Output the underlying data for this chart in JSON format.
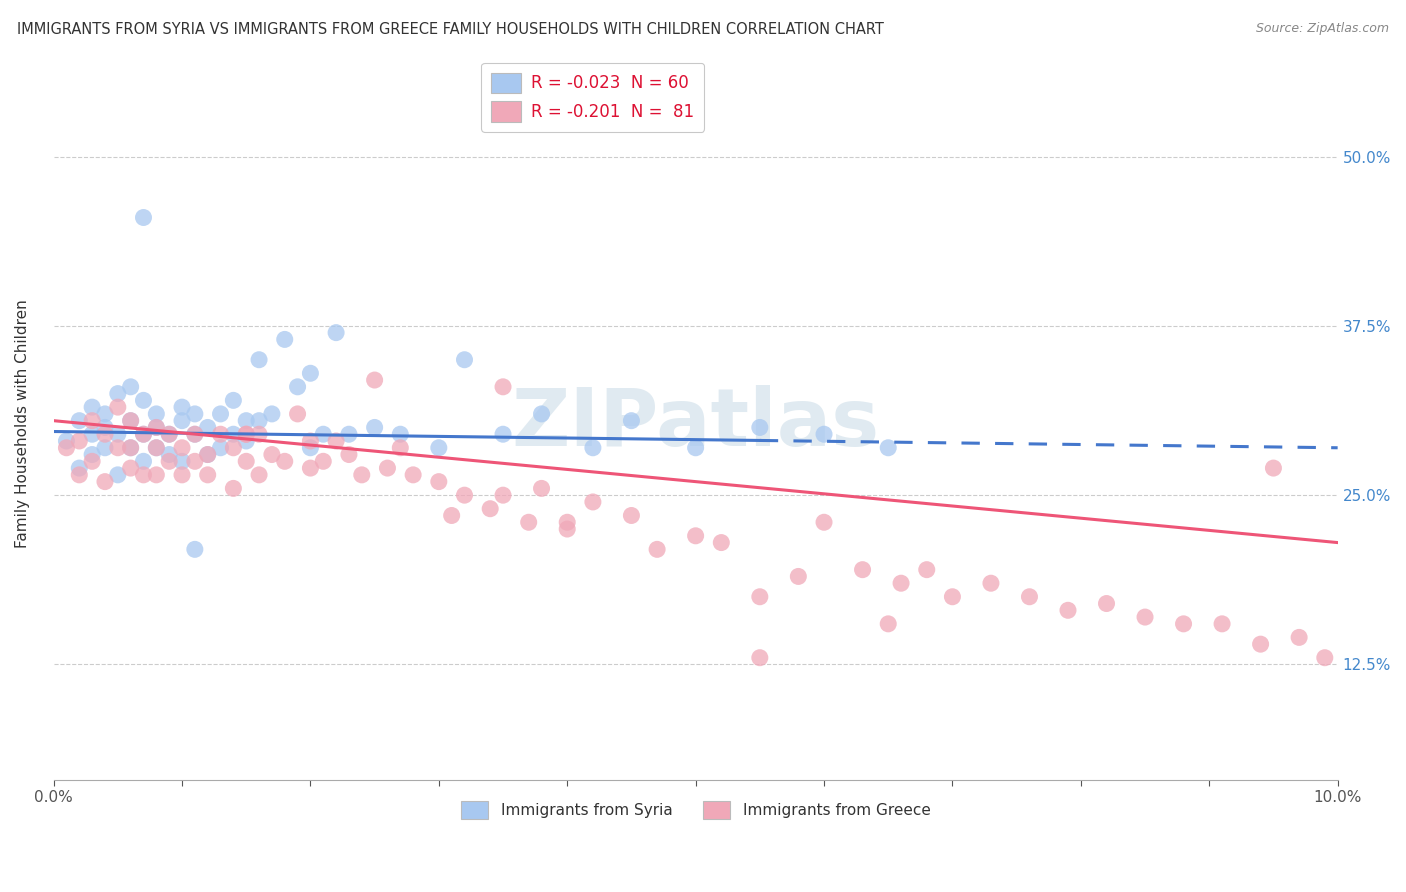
{
  "title": "IMMIGRANTS FROM SYRIA VS IMMIGRANTS FROM GREECE FAMILY HOUSEHOLDS WITH CHILDREN CORRELATION CHART",
  "source": "Source: ZipAtlas.com",
  "ylabel": "Family Households with Children",
  "yticks": [
    "12.5%",
    "25.0%",
    "37.5%",
    "50.0%"
  ],
  "ytick_values": [
    0.125,
    0.25,
    0.375,
    0.5
  ],
  "xlim": [
    0.0,
    0.1
  ],
  "ylim": [
    0.04,
    0.565
  ],
  "legend_syria": "R = -0.023  N = 60",
  "legend_greece": "R = -0.201  N =  81",
  "legend_label_syria": "Immigrants from Syria",
  "legend_label_greece": "Immigrants from Greece",
  "syria_color": "#a8c8f0",
  "greece_color": "#f0a8b8",
  "syria_line_color": "#4477cc",
  "greece_line_color": "#ee5577",
  "watermark": "ZIPatlas",
  "watermark_color": "#ccdde8",
  "syria_x": [
    0.001,
    0.002,
    0.002,
    0.003,
    0.003,
    0.003,
    0.004,
    0.004,
    0.004,
    0.005,
    0.005,
    0.005,
    0.006,
    0.006,
    0.006,
    0.007,
    0.007,
    0.007,
    0.008,
    0.008,
    0.008,
    0.009,
    0.009,
    0.01,
    0.01,
    0.01,
    0.011,
    0.011,
    0.012,
    0.012,
    0.013,
    0.013,
    0.014,
    0.014,
    0.015,
    0.015,
    0.016,
    0.017,
    0.018,
    0.019,
    0.02,
    0.021,
    0.022,
    0.023,
    0.025,
    0.027,
    0.03,
    0.032,
    0.035,
    0.038,
    0.042,
    0.045,
    0.05,
    0.055,
    0.06,
    0.065,
    0.02,
    0.016,
    0.011,
    0.007
  ],
  "syria_y": [
    0.29,
    0.305,
    0.27,
    0.315,
    0.295,
    0.28,
    0.31,
    0.285,
    0.3,
    0.295,
    0.265,
    0.325,
    0.285,
    0.305,
    0.33,
    0.295,
    0.32,
    0.275,
    0.3,
    0.285,
    0.31,
    0.295,
    0.28,
    0.305,
    0.315,
    0.275,
    0.295,
    0.31,
    0.28,
    0.3,
    0.31,
    0.285,
    0.295,
    0.32,
    0.305,
    0.29,
    0.35,
    0.31,
    0.365,
    0.33,
    0.34,
    0.295,
    0.37,
    0.295,
    0.3,
    0.295,
    0.285,
    0.35,
    0.295,
    0.31,
    0.285,
    0.305,
    0.285,
    0.3,
    0.295,
    0.285,
    0.285,
    0.305,
    0.21,
    0.455
  ],
  "greece_x": [
    0.001,
    0.002,
    0.002,
    0.003,
    0.003,
    0.004,
    0.004,
    0.005,
    0.005,
    0.006,
    0.006,
    0.006,
    0.007,
    0.007,
    0.008,
    0.008,
    0.008,
    0.009,
    0.009,
    0.01,
    0.01,
    0.011,
    0.011,
    0.012,
    0.012,
    0.013,
    0.014,
    0.014,
    0.015,
    0.015,
    0.016,
    0.016,
    0.017,
    0.018,
    0.019,
    0.02,
    0.021,
    0.022,
    0.023,
    0.024,
    0.025,
    0.026,
    0.027,
    0.028,
    0.03,
    0.031,
    0.032,
    0.034,
    0.035,
    0.037,
    0.038,
    0.04,
    0.042,
    0.045,
    0.047,
    0.05,
    0.052,
    0.055,
    0.058,
    0.06,
    0.063,
    0.066,
    0.068,
    0.07,
    0.073,
    0.076,
    0.079,
    0.082,
    0.085,
    0.088,
    0.091,
    0.094,
    0.097,
    0.099,
    0.035,
    0.04,
    0.02,
    0.015,
    0.055,
    0.065,
    0.095
  ],
  "greece_y": [
    0.285,
    0.29,
    0.265,
    0.305,
    0.275,
    0.295,
    0.26,
    0.315,
    0.285,
    0.27,
    0.305,
    0.285,
    0.265,
    0.295,
    0.285,
    0.3,
    0.265,
    0.295,
    0.275,
    0.265,
    0.285,
    0.295,
    0.275,
    0.265,
    0.28,
    0.295,
    0.255,
    0.285,
    0.275,
    0.295,
    0.265,
    0.295,
    0.28,
    0.275,
    0.31,
    0.29,
    0.275,
    0.29,
    0.28,
    0.265,
    0.335,
    0.27,
    0.285,
    0.265,
    0.26,
    0.235,
    0.25,
    0.24,
    0.33,
    0.23,
    0.255,
    0.225,
    0.245,
    0.235,
    0.21,
    0.22,
    0.215,
    0.175,
    0.19,
    0.23,
    0.195,
    0.185,
    0.195,
    0.175,
    0.185,
    0.175,
    0.165,
    0.17,
    0.16,
    0.155,
    0.155,
    0.14,
    0.145,
    0.13,
    0.25,
    0.23,
    0.27,
    0.295,
    0.13,
    0.155,
    0.27
  ],
  "syria_line_x": [
    0.0,
    0.055,
    0.055,
    0.1
  ],
  "syria_line_style": [
    "solid",
    "dashed"
  ],
  "syria_line_break": 0.055,
  "greece_line_x_start": 0.0,
  "greece_line_x_end": 0.1
}
